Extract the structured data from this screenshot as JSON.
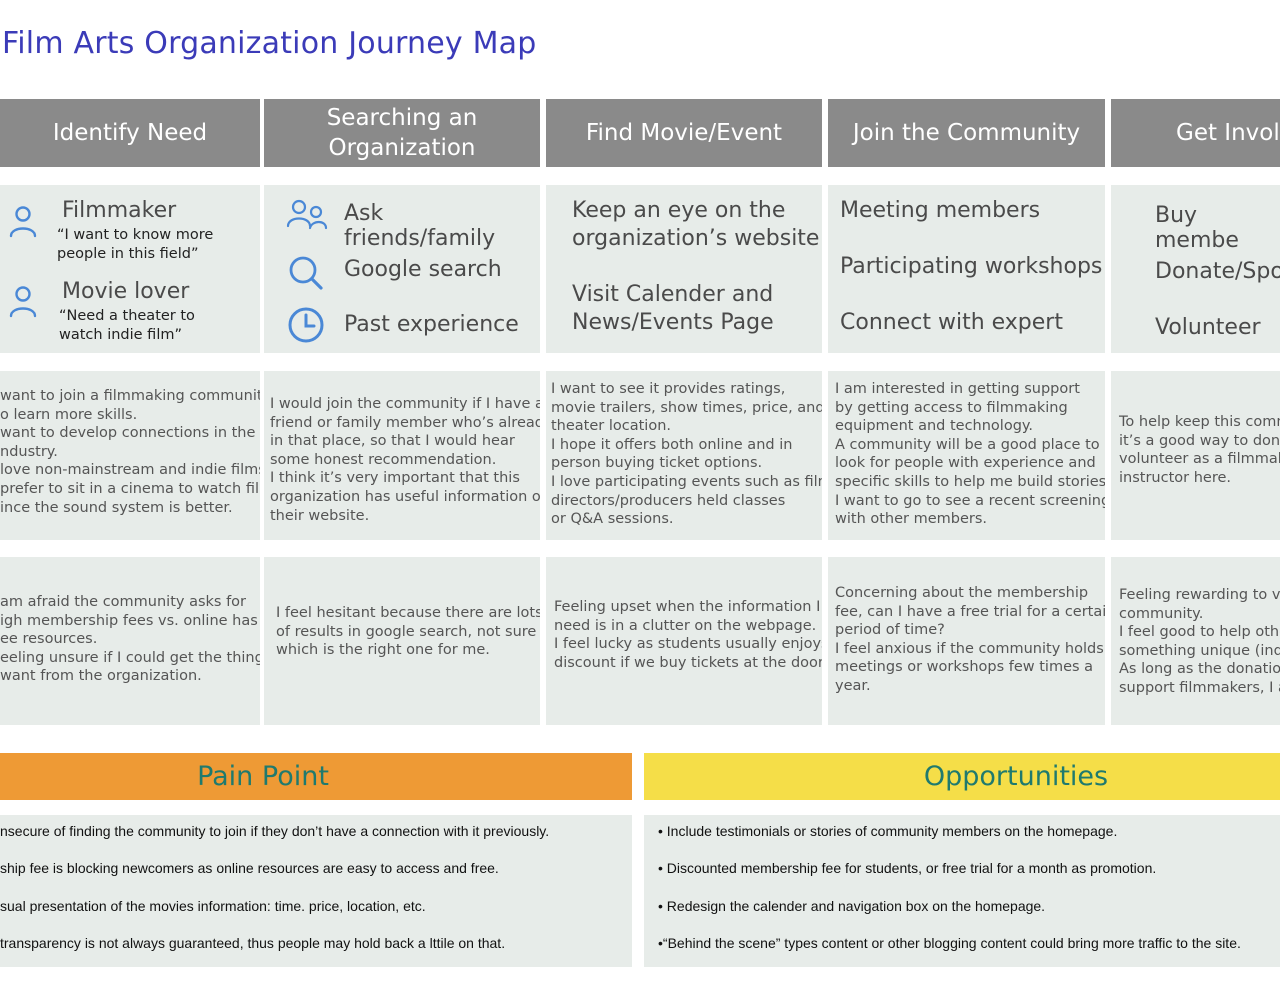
{
  "title": "Film Arts Organization Journey Map",
  "colors": {
    "title": "#3b3bb8",
    "header_bg": "#8a8a8a",
    "cell_bg": "#e7ece9",
    "pain_bg": "#ee9a35",
    "opp_bg": "#f5de48",
    "band_text": "#1f7a6e",
    "icon": "#4a88d6"
  },
  "stages": [
    "Identify Need",
    "Searching an\nOrganization",
    "Find Movie/Event",
    "Join the Community",
    "Get Involv"
  ],
  "personas": [
    {
      "icon": "person-icon",
      "name": "Filmmaker",
      "quote": "“I want to know more\npeople in this field”"
    },
    {
      "icon": "person-icon",
      "name": "Movie lover",
      "quote": "“Need a theater to\nwatch indie film”"
    }
  ],
  "search_items": [
    {
      "icon": "people-icon",
      "label": "Ask friends/family"
    },
    {
      "icon": "search-icon",
      "label": "Google search"
    },
    {
      "icon": "clock-icon",
      "label": "Past experience"
    }
  ],
  "find_items": [
    "Keep an eye on the\norganization’s website",
    "Visit Calender and\nNews/Events Page"
  ],
  "join_items": [
    "Meeting members",
    "Participating workshops",
    "Connect with expert"
  ],
  "involve_items": [
    "Buy membe",
    "Donate/Spor",
    "Volunteer"
  ],
  "thoughts": [
    "want to join a filmmaking community\no learn more skills.\nwant to develop connections in the\nndustry.\nlove non-mainstream and indie films.\nprefer to sit in a cinema to watch film\nince the sound system is better.",
    "I would join the community if I have a\nfriend or family member who’s already\nin that place, so that I would hear\nsome honest recommendation.\nI think it’s very important that this\norganization has useful information on\ntheir website.",
    "I want to see it provides ratings,\nmovie trailers, show times, price, and\ntheater location.\nI hope it offers both online and in\nperson buying ticket options.\nI love participating events such as film\ndirectors/producers held classes\nor Q&A sessions.",
    "I am interested in getting support\nby getting access to filmmaking\nequipment and technology.\nA community will be a good place to\nlook for people with experience and\nspecific skills to help me build stories.\nI want to go to see a recent screening\nwith other members.",
    "To help keep this comm\nit’s a good way to dona\nvolunteer as a filmmaki\ninstructor here."
  ],
  "feelings": [
    "am afraid the community asks for\nigh membership fees vs. online has\nee resources.\neeling unsure if I could get the things\nwant from the organization.",
    "I feel hesitant because there are lots\nof results in google search, not sure\nwhich is the right one for me.",
    "Feeling upset when the information I\nneed is in a clutter on the webpage.\nI feel lucky as students usually enjoys\ndiscount if we buy tickets at the door.",
    "Concerning about the membership\nfee, can I have a free trial for a certain\nperiod of time?\nI feel anxious if the community holds\nmeetings or workshops few times a\nyear.",
    "Feeling rewarding to vo\ncommunity.\nI feel good to help othe\nsomething unique (indi\nAs long as the donation\nsupport filmmakers, I a"
  ],
  "pain": {
    "label": "Pain Point",
    "items": [
      "nsecure of finding the community to join if they don’t have a connection with it previously.",
      "ship fee is blocking newcomers as online resources are easy to access and free.",
      "sual presentation of the movies information: time. price, location, etc.",
      "transparency is not always guaranteed, thus people may hold back a lttile on that."
    ]
  },
  "opportunities": {
    "label": "Opportunities",
    "items": [
      "• Include testimonials or stories of community members on the homepage.",
      "• Discounted membership fee for students, or free trial for a month as promotion.",
      "• Redesign the calender and navigation box on the homepage.",
      "•“Behind the scene” types content or other blogging content could bring more traffic to the site."
    ]
  }
}
